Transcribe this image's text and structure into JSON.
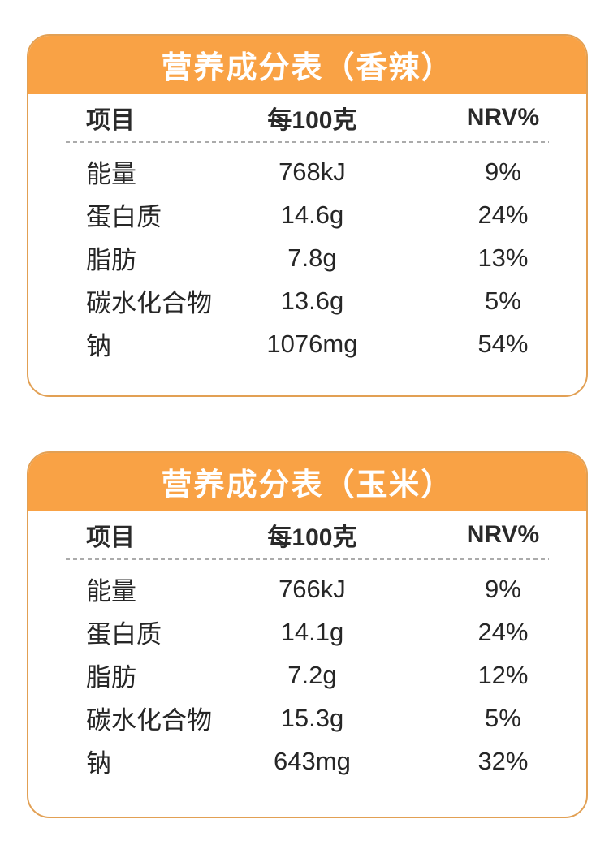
{
  "theme": {
    "header_orange": "#f9a245",
    "border_orange": "#e2a054",
    "title_text_color": "#ffffff",
    "body_text_color": "#262626",
    "dash_color": "#ababab",
    "page_background": "#ffffff"
  },
  "tables": [
    {
      "title": "营养成分表（香辣）",
      "flavor": "香辣",
      "columns": [
        "项目",
        "每100克",
        "NRV%"
      ],
      "rows": [
        {
          "item": "能量",
          "per100g": "768kJ",
          "nrv": "9%"
        },
        {
          "item": "蛋白质",
          "per100g": "14.6g",
          "nrv": "24%"
        },
        {
          "item": "脂肪",
          "per100g": "7.8g",
          "nrv": "13%"
        },
        {
          "item": "碳水化合物",
          "per100g": "13.6g",
          "nrv": "5%"
        },
        {
          "item": "钠",
          "per100g": "1076mg",
          "nrv": "54%"
        }
      ]
    },
    {
      "title": "营养成分表（玉米）",
      "flavor": "玉米",
      "columns": [
        "项目",
        "每100克",
        "NRV%"
      ],
      "rows": [
        {
          "item": "能量",
          "per100g": "766kJ",
          "nrv": "9%"
        },
        {
          "item": "蛋白质",
          "per100g": "14.1g",
          "nrv": "24%"
        },
        {
          "item": "脂肪",
          "per100g": "7.2g",
          "nrv": "12%"
        },
        {
          "item": "碳水化合物",
          "per100g": "15.3g",
          "nrv": "5%"
        },
        {
          "item": "钠",
          "per100g": "643mg",
          "nrv": "32%"
        }
      ]
    }
  ]
}
